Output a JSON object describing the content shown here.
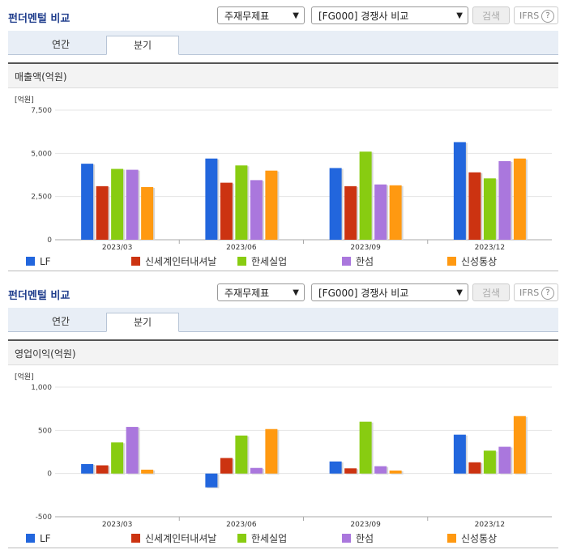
{
  "sections": [
    {
      "title": "펀더멘털 비교",
      "select1": "주재무제표",
      "select2": "[FG000] 경쟁사 비교",
      "search_label": "검색",
      "ifrs_label": "IFRS",
      "tabs": [
        "연간",
        "분기"
      ],
      "active_tab": "분기",
      "subheader": "매출액(억원)"
    },
    {
      "title": "펀더멘털 비교",
      "select1": "주재무제표",
      "select2": "[FG000] 경쟁사 비교",
      "search_label": "검색",
      "ifrs_label": "IFRS",
      "tabs": [
        "연간",
        "분기"
      ],
      "active_tab": "분기",
      "subheader": "영업이익(억원)"
    }
  ],
  "colors": {
    "LF": "#2266dd",
    "신세계인터내셔날": "#cc3311",
    "한세실업": "#88cc11",
    "한섬": "#aa77dd",
    "신성통상": "#ff9911"
  },
  "chart_data": [
    {
      "type": "bar",
      "title": "매출액(억원)",
      "unit_label": "[억원]",
      "categories": [
        "2023/03",
        "2023/06",
        "2023/09",
        "2023/12"
      ],
      "ylim": [
        0,
        7500
      ],
      "yticks": [
        0,
        2500,
        5000,
        7500
      ],
      "ytick_labels": [
        "0",
        "2,500",
        "5,000",
        "7,500"
      ],
      "series": [
        {
          "name": "LF",
          "values": [
            4400,
            4700,
            4150,
            5650
          ]
        },
        {
          "name": "신세계인터내셔날",
          "values": [
            3100,
            3300,
            3100,
            3900
          ]
        },
        {
          "name": "한세실업",
          "values": [
            4100,
            4300,
            5100,
            3550
          ]
        },
        {
          "name": "한섬",
          "values": [
            4050,
            3450,
            3200,
            4550
          ]
        },
        {
          "name": "신성통상",
          "values": [
            3050,
            4000,
            3150,
            4700
          ]
        }
      ],
      "legend_position": "bottom"
    },
    {
      "type": "bar",
      "title": "영업이익(억원)",
      "unit_label": "[억원]",
      "categories": [
        "2023/03",
        "2023/06",
        "2023/09",
        "2023/12"
      ],
      "ylim": [
        -500,
        1000
      ],
      "yticks": [
        -500,
        0,
        500,
        1000
      ],
      "ytick_labels": [
        "-500",
        "0",
        "500",
        "1,000"
      ],
      "series": [
        {
          "name": "LF",
          "values": [
            110,
            -160,
            140,
            450
          ]
        },
        {
          "name": "신세계인터내셔날",
          "values": [
            95,
            180,
            60,
            130
          ]
        },
        {
          "name": "한세실업",
          "values": [
            360,
            440,
            600,
            265
          ]
        },
        {
          "name": "한섬",
          "values": [
            540,
            65,
            85,
            310
          ]
        },
        {
          "name": "신성통상",
          "values": [
            45,
            515,
            35,
            665
          ]
        }
      ],
      "legend_position": "bottom"
    }
  ]
}
